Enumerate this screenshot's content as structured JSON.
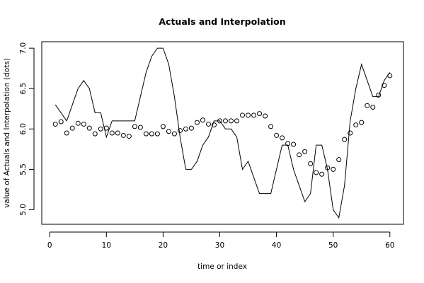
{
  "chart_data": {
    "type": "line",
    "title": "Actuals and Interpolation",
    "xlabel": "time or index",
    "ylabel": "value of Actuals and Interpolation (dots)",
    "xlim": [
      -1.4,
      62.4
    ],
    "ylim": [
      4.82,
      7.08
    ],
    "x_ticks": [
      0,
      10,
      20,
      30,
      40,
      50,
      60
    ],
    "y_ticks": [
      5.0,
      5.5,
      6.0,
      6.5,
      7.0
    ],
    "x_tick_labels": [
      "0",
      "10",
      "20",
      "30",
      "40",
      "50",
      "60"
    ],
    "y_tick_labels": [
      "5.0",
      "5.5",
      "6.0",
      "6.5",
      "7.0"
    ],
    "grid": false,
    "legend": "none",
    "colors": {
      "line": "#000000",
      "points": "#000000",
      "axis": "#000000"
    },
    "series": [
      {
        "style": "line",
        "x": [
          1,
          2,
          3,
          4,
          5,
          6,
          7,
          8,
          9,
          10,
          11,
          12,
          13,
          14,
          15,
          16,
          17,
          18,
          19,
          20,
          21,
          22,
          23,
          24,
          25,
          26,
          27,
          28,
          29,
          30,
          31,
          32,
          33,
          34,
          35,
          36,
          37,
          38,
          39,
          40,
          41,
          42,
          43,
          44,
          45,
          46,
          47,
          48,
          49,
          50,
          51,
          52,
          53,
          54,
          55,
          56,
          57,
          58,
          59,
          60
        ],
        "y": [
          6.3,
          6.2,
          6.1,
          6.3,
          6.5,
          6.6,
          6.5,
          6.2,
          6.2,
          5.9,
          6.1,
          6.1,
          6.1,
          6.1,
          6.1,
          6.4,
          6.7,
          6.9,
          7.0,
          7.0,
          6.8,
          6.4,
          5.9,
          5.5,
          5.5,
          5.6,
          5.8,
          5.9,
          6.1,
          6.1,
          6.0,
          6.0,
          5.9,
          5.5,
          5.6,
          5.4,
          5.2,
          5.2,
          5.2,
          5.5,
          5.8,
          5.8,
          5.5,
          5.3,
          5.1,
          5.2,
          5.8,
          5.8,
          5.5,
          5.0,
          4.9,
          5.3,
          6.1,
          6.5,
          6.8,
          6.6,
          6.4,
          6.4,
          6.6,
          6.7
        ]
      },
      {
        "style": "points",
        "x": [
          1,
          2,
          3,
          4,
          5,
          6,
          7,
          8,
          9,
          10,
          11,
          12,
          13,
          14,
          15,
          16,
          17,
          18,
          19,
          20,
          21,
          22,
          23,
          24,
          25,
          26,
          27,
          28,
          29,
          30,
          31,
          32,
          33,
          34,
          35,
          36,
          37,
          38,
          39,
          40,
          41,
          42,
          43,
          44,
          45,
          46,
          47,
          48,
          49,
          50,
          51,
          52,
          53,
          54,
          55,
          56,
          57,
          58,
          59,
          60
        ],
        "y": [
          6.06,
          6.09,
          5.95,
          6.01,
          6.07,
          6.06,
          6.01,
          5.94,
          6.0,
          6.01,
          5.95,
          5.95,
          5.92,
          5.91,
          6.03,
          6.02,
          5.94,
          5.94,
          5.94,
          6.03,
          5.97,
          5.94,
          5.98,
          6.0,
          6.01,
          6.08,
          6.11,
          6.06,
          6.05,
          6.1,
          6.1,
          6.1,
          6.1,
          6.17,
          6.17,
          6.17,
          6.19,
          6.16,
          6.03,
          5.92,
          5.89,
          5.82,
          5.81,
          5.68,
          5.72,
          5.57,
          5.46,
          5.44,
          5.52,
          5.5,
          5.62,
          5.87,
          5.95,
          6.05,
          6.08,
          6.29,
          6.27,
          6.42,
          6.54,
          6.66
        ]
      }
    ]
  }
}
